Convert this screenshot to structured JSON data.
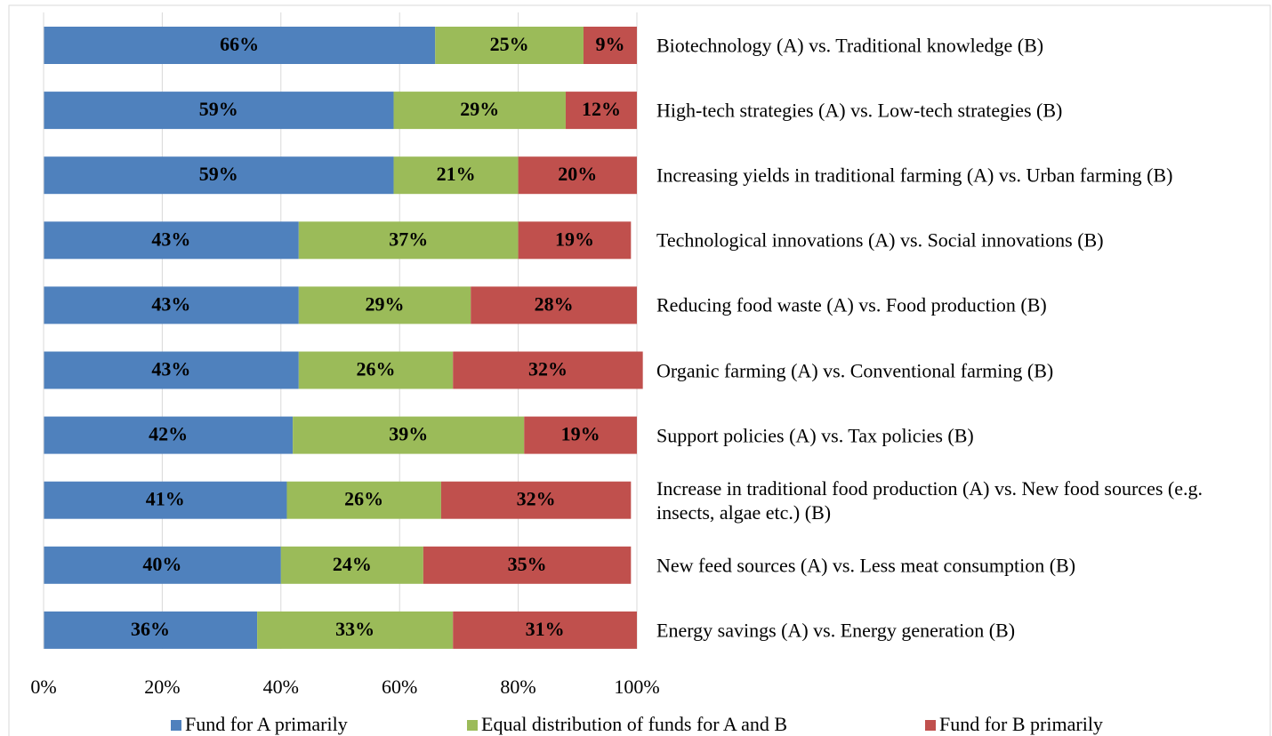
{
  "chart_data": {
    "type": "stacked_barh",
    "categories": [
      "Biotechnology (A) vs. Traditional knowledge (B)",
      "High-tech strategies (A) vs. Low-tech strategies (B)",
      "Increasing yields in traditional farming (A) vs. Urban farming (B)",
      "Technological innovations (A) vs. Social innovations (B)",
      "Reducing food waste (A) vs. Food production (B)",
      "Organic farming (A) vs. Conventional farming (B)",
      "Support policies (A) vs. Tax policies (B)",
      "Increase in traditional food production (A) vs. New food sources (e.g. insects, algae etc.) (B)",
      "New feed sources (A) vs. Less meat consumption (B)",
      "Energy savings (A) vs. Energy generation (B)"
    ],
    "series": [
      {
        "name": "Fund for A primarily",
        "color": "#4f81bd",
        "values": [
          66,
          59,
          59,
          43,
          43,
          43,
          42,
          41,
          40,
          36
        ],
        "value_labels": [
          "66%",
          "59%",
          "59%",
          "43%",
          "43%",
          "43%",
          "42%",
          "41%",
          "40%",
          "36%"
        ]
      },
      {
        "name": "Equal distribution of funds for A and B",
        "color": "#9bbb59",
        "values": [
          25,
          29,
          21,
          37,
          29,
          26,
          39,
          26,
          24,
          33
        ],
        "value_labels": [
          "25%",
          "29%",
          "21%",
          "37%",
          "29%",
          "26%",
          "39%",
          "26%",
          "24%",
          "33%"
        ]
      },
      {
        "name": "Fund for B primarily",
        "color": "#c0504d",
        "values": [
          9,
          12,
          20,
          19,
          28,
          32,
          19,
          32,
          35,
          31
        ],
        "value_labels": [
          "9%",
          "12%",
          "20%",
          "19%",
          "28%",
          "32%",
          "19%",
          "32%",
          "35%",
          "31%"
        ]
      }
    ],
    "xlim": [
      0,
      100
    ],
    "xticks": [
      {
        "value": 0,
        "label": "0%"
      },
      {
        "value": 20,
        "label": "20%"
      },
      {
        "value": 40,
        "label": "40%"
      },
      {
        "value": 60,
        "label": "60%"
      },
      {
        "value": 80,
        "label": "80%"
      },
      {
        "value": 100,
        "label": "100%"
      }
    ],
    "grid": true
  }
}
